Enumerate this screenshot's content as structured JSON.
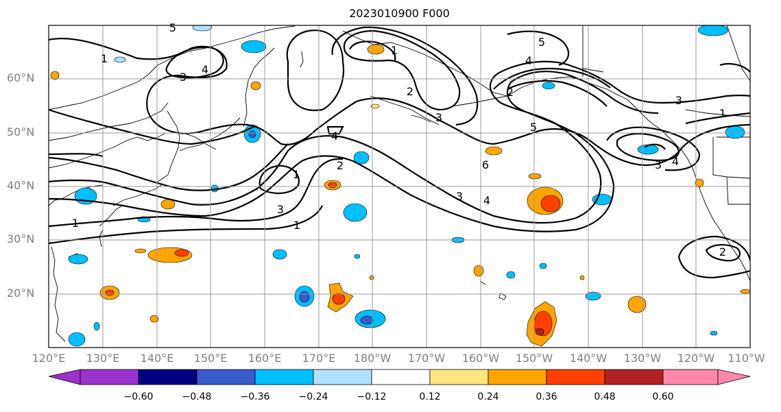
{
  "title": "2023010900 F000",
  "lat_labels": [
    "60°N",
    "50°N",
    "40°N",
    "30°N",
    "20°N"
  ],
  "lon_labels": [
    "120°E",
    "130°E",
    "140°E",
    "150°E",
    "160°E",
    "170°E",
    "180°W",
    "170°W",
    "160°W",
    "150°W",
    "140°W",
    "130°W",
    "120°W",
    "110°W"
  ],
  "colorbar": {
    "tick_labels": [
      "−0.60",
      "−0.48",
      "−0.36",
      "−0.24",
      "−0.12",
      "0.12",
      "0.24",
      "0.36",
      "0.48",
      "0.60"
    ],
    "colors": [
      "#9933cc",
      "#000080",
      "#3a5bcc",
      "#00bfff",
      "#b0e2ff",
      "#ffffff",
      "#ffe680",
      "#ffa500",
      "#ff4000",
      "#b22222",
      "#ff88aa"
    ]
  },
  "contour_labels": [
    "5",
    "1",
    "4",
    "3",
    "1",
    "2",
    "3",
    "5",
    "4",
    "2",
    "3",
    "1",
    "4",
    "5",
    "6",
    "2",
    "4",
    "3",
    "1",
    "4",
    "3",
    "3",
    "4",
    "1",
    "2"
  ]
}
